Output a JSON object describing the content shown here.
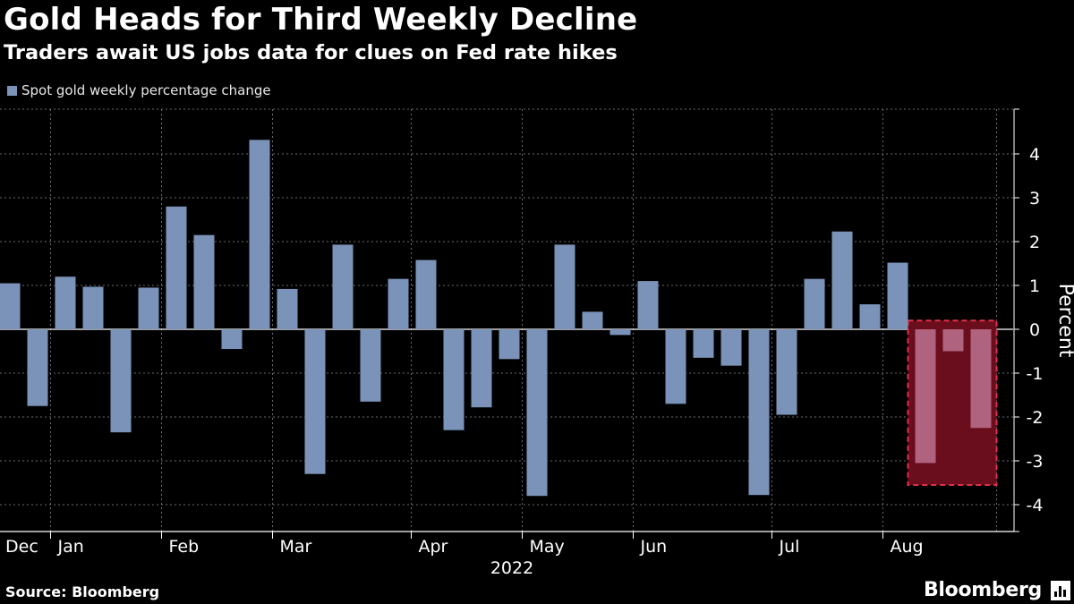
{
  "header": {
    "title": "Gold Heads for Third Weekly Decline",
    "subtitle": "Traders await US jobs data for clues on Fed rate hikes"
  },
  "legend": {
    "label": "Spot gold weekly percentage change",
    "color": "#7b93b8"
  },
  "footer": {
    "source": "Source: Bloomberg",
    "brand": "Bloomberg"
  },
  "colors": {
    "bar": "#7b93b8",
    "highlight_bar": "#b0637e",
    "highlight_fill": "#6a0d1c",
    "highlight_border": "#e0304a",
    "grid": "#6b6b6b"
  },
  "chart_data": {
    "type": "bar",
    "title": "Gold Heads for Third Weekly Decline",
    "subtitle": "Traders await US jobs data for clues on Fed rate hikes",
    "xlabel": "2022",
    "ylabel": "Percent",
    "ylim": [
      -4.5,
      5
    ],
    "yticks": [
      -4,
      -3,
      -2,
      -1,
      0,
      1,
      2,
      3,
      4
    ],
    "ytick_labels": [
      "-4",
      "-3",
      "-2",
      "-1",
      "0",
      "1",
      "2",
      "3",
      "4"
    ],
    "month_labels": [
      {
        "label": "Dec",
        "week": 0
      },
      {
        "label": "Jan",
        "week": 2
      },
      {
        "label": "Feb",
        "week": 6
      },
      {
        "label": "Mar",
        "week": 10
      },
      {
        "label": "Apr",
        "week": 15
      },
      {
        "label": "May",
        "week": 19
      },
      {
        "label": "Jun",
        "week": 23
      },
      {
        "label": "Jul",
        "week": 28
      },
      {
        "label": "Aug",
        "week": 32
      }
    ],
    "grid": true,
    "series": [
      {
        "name": "Spot gold weekly percentage change",
        "values": [
          1.05,
          -1.75,
          1.2,
          0.97,
          -2.35,
          0.95,
          2.8,
          2.15,
          -0.45,
          4.32,
          0.92,
          -3.3,
          1.93,
          -1.65,
          1.15,
          1.58,
          -2.3,
          -1.78,
          -0.68,
          -3.8,
          1.93,
          0.4,
          -0.13,
          1.1,
          -1.7,
          -0.65,
          -0.83,
          -3.78,
          -1.95,
          1.15,
          2.23,
          0.57,
          1.52,
          -3.05,
          -0.5,
          -2.25
        ]
      }
    ],
    "highlighted_weeks": [
      33,
      34,
      35
    ],
    "highlight_box": {
      "weeks": [
        33,
        35
      ],
      "y_range": [
        -3.55,
        0.2
      ]
    }
  }
}
